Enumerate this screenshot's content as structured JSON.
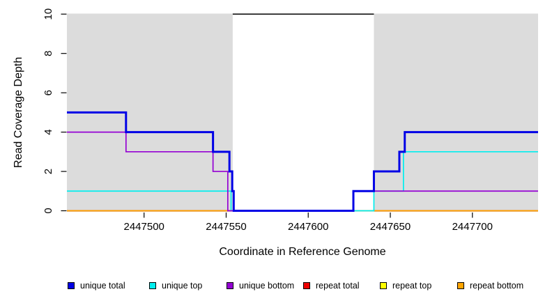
{
  "chart_data": {
    "type": "line",
    "subtype": "step-coverage-plot",
    "title": "",
    "xlabel": "Coordinate in Reference Genome",
    "ylabel": "Read Coverage Depth",
    "xlim": [
      2447453,
      2447740
    ],
    "ylim": [
      0,
      10
    ],
    "xticks": [
      "2447500",
      "2447550",
      "2447600",
      "2447650",
      "2447700"
    ],
    "xtick_values": [
      2447500,
      2447550,
      2447600,
      2447650,
      2447700
    ],
    "yticks": [
      "0",
      "2",
      "4",
      "6",
      "8",
      "10"
    ],
    "ytick_values": [
      0,
      2,
      4,
      6,
      8,
      10
    ],
    "grid": "off",
    "legend_position": "bottom",
    "shaded_regions": {
      "color": "#DCDCDC",
      "regions": [
        {
          "from": 2447453,
          "to": 2447554
        },
        {
          "from": 2447640,
          "to": 2447740
        }
      ]
    },
    "unlabeled_top_line": {
      "comment": "black horizontal line at y=10 spanning the unshaded middle gap",
      "color": "#000000",
      "line_width": 1.6,
      "value": 10,
      "from": 2447554,
      "to": 2447640
    },
    "series": [
      {
        "name": "repeat top",
        "color": "#FFFF00",
        "line_width": 1.7,
        "steps": [
          {
            "from": 2447453,
            "to": 2447740,
            "value": 0
          }
        ]
      },
      {
        "name": "repeat total",
        "color": "#EE0000",
        "line_width": 1.7,
        "steps": [
          {
            "from": 2447453,
            "to": 2447740,
            "value": 0
          }
        ]
      },
      {
        "name": "repeat bottom",
        "color": "#FFA500",
        "line_width": 1.7,
        "steps": [
          {
            "from": 2447453,
            "to": 2447740,
            "value": 0
          }
        ]
      },
      {
        "name": "unique top",
        "color": "#00EEEE",
        "line_width": 1.7,
        "steps": [
          {
            "from": 2447453,
            "to": 2447553,
            "value": 1
          },
          {
            "from": 2447553,
            "to": 2447640,
            "value": 0
          },
          {
            "from": 2447640,
            "to": 2447658,
            "value": 1
          },
          {
            "from": 2447658,
            "to": 2447740,
            "value": 3
          }
        ]
      },
      {
        "name": "unique bottom",
        "color": "#9400D3",
        "line_width": 1.7,
        "steps": [
          {
            "from": 2447453,
            "to": 2447489,
            "value": 4
          },
          {
            "from": 2447489,
            "to": 2447542,
            "value": 3
          },
          {
            "from": 2447542,
            "to": 2447551,
            "value": 2
          },
          {
            "from": 2447551,
            "to": 2447627.5,
            "value": 0
          },
          {
            "from": 2447627.5,
            "to": 2447740,
            "value": 1
          }
        ]
      },
      {
        "name": "unique total",
        "color": "#0000E6",
        "line_width": 3,
        "steps": [
          {
            "from": 2447453,
            "to": 2447489,
            "value": 5
          },
          {
            "from": 2447489,
            "to": 2447542,
            "value": 4
          },
          {
            "from": 2447542,
            "to": 2447552,
            "value": 3
          },
          {
            "from": 2447552,
            "to": 2447553.7,
            "value": 2
          },
          {
            "from": 2447553.7,
            "to": 2447554.6,
            "value": 1
          },
          {
            "from": 2447554.6,
            "to": 2447627.5,
            "value": 0
          },
          {
            "from": 2447627.5,
            "to": 2447640,
            "value": 1
          },
          {
            "from": 2447640,
            "to": 2447655.5,
            "value": 2
          },
          {
            "from": 2447655.5,
            "to": 2447658.8,
            "value": 3
          },
          {
            "from": 2447658.8,
            "to": 2447740,
            "value": 4
          }
        ]
      }
    ],
    "legend": [
      {
        "label": "unique total",
        "color": "#0000E6"
      },
      {
        "label": "unique top",
        "color": "#00EEEE"
      },
      {
        "label": "unique bottom",
        "color": "#9400D3"
      },
      {
        "label": "repeat total",
        "color": "#EE0000"
      },
      {
        "label": "repeat top",
        "color": "#FFFF00"
      },
      {
        "label": "repeat bottom",
        "color": "#FFA500"
      }
    ]
  }
}
